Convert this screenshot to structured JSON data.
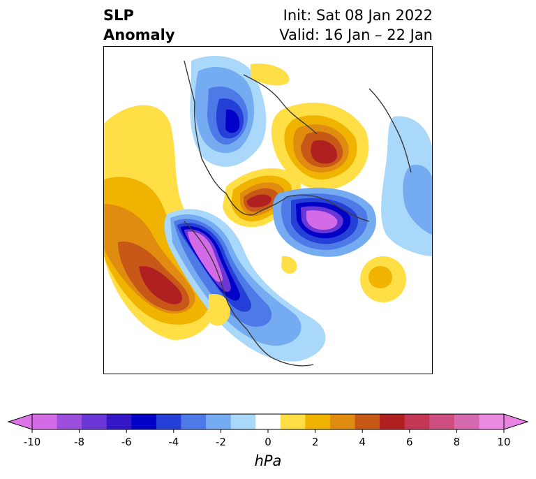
{
  "header": {
    "title_line1": "SLP",
    "title_line2": "Anomaly",
    "init_text": "Init: Sat 08 Jan 2022",
    "valid_text": "Valid: 16 Jan – 22 Jan"
  },
  "colorbar": {
    "unit": "hPa",
    "tick_labels": [
      "-10",
      "-8",
      "-6",
      "-4",
      "-2",
      "0",
      "2",
      "4",
      "6",
      "8",
      "10"
    ],
    "colors": [
      "#d36be6",
      "#9b4fdc",
      "#6a37d6",
      "#3418c8",
      "#0000c6",
      "#2540d6",
      "#4d7ae6",
      "#74abf1",
      "#aad8fa",
      "#ffffff",
      "#ffdf45",
      "#f0b400",
      "#e08c10",
      "#c85818",
      "#b02020",
      "#c23854",
      "#cc4e80",
      "#d66aae",
      "#e98ae0"
    ],
    "extend_left_color": "#dc74e8",
    "extend_right_color": "#e983e2"
  }
}
